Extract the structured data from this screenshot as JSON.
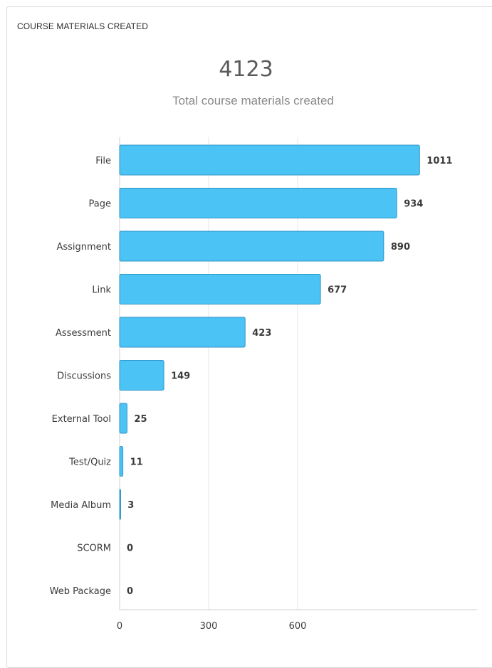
{
  "widget": {
    "title": "COURSE MATERIALS CREATED",
    "total_value": "4123",
    "total_label": "Total course materials created"
  },
  "colors": {
    "bar_fill": "#4cc3f5",
    "bar_stroke": "#2f95c7",
    "grid": "#e6e6e6",
    "axis": "#cfcfcf"
  },
  "chart_data": {
    "type": "bar",
    "orientation": "horizontal",
    "categories": [
      "File",
      "Page",
      "Assignment",
      "Link",
      "Assessment",
      "Discussions",
      "External Tool",
      "Test/Quiz",
      "Media Album",
      "SCORM",
      "Web Package"
    ],
    "values": [
      1011,
      934,
      890,
      677,
      423,
      149,
      25,
      11,
      3,
      0,
      0
    ],
    "data_labels": [
      "1011",
      "934",
      "890",
      "677",
      "423",
      "149",
      "25",
      "11",
      "3",
      "0",
      "0"
    ],
    "x_ticks": [
      0,
      300,
      600
    ],
    "x_tick_labels": [
      "0",
      "300",
      "600"
    ],
    "xlim": [
      0,
      1200
    ],
    "grid": true
  }
}
